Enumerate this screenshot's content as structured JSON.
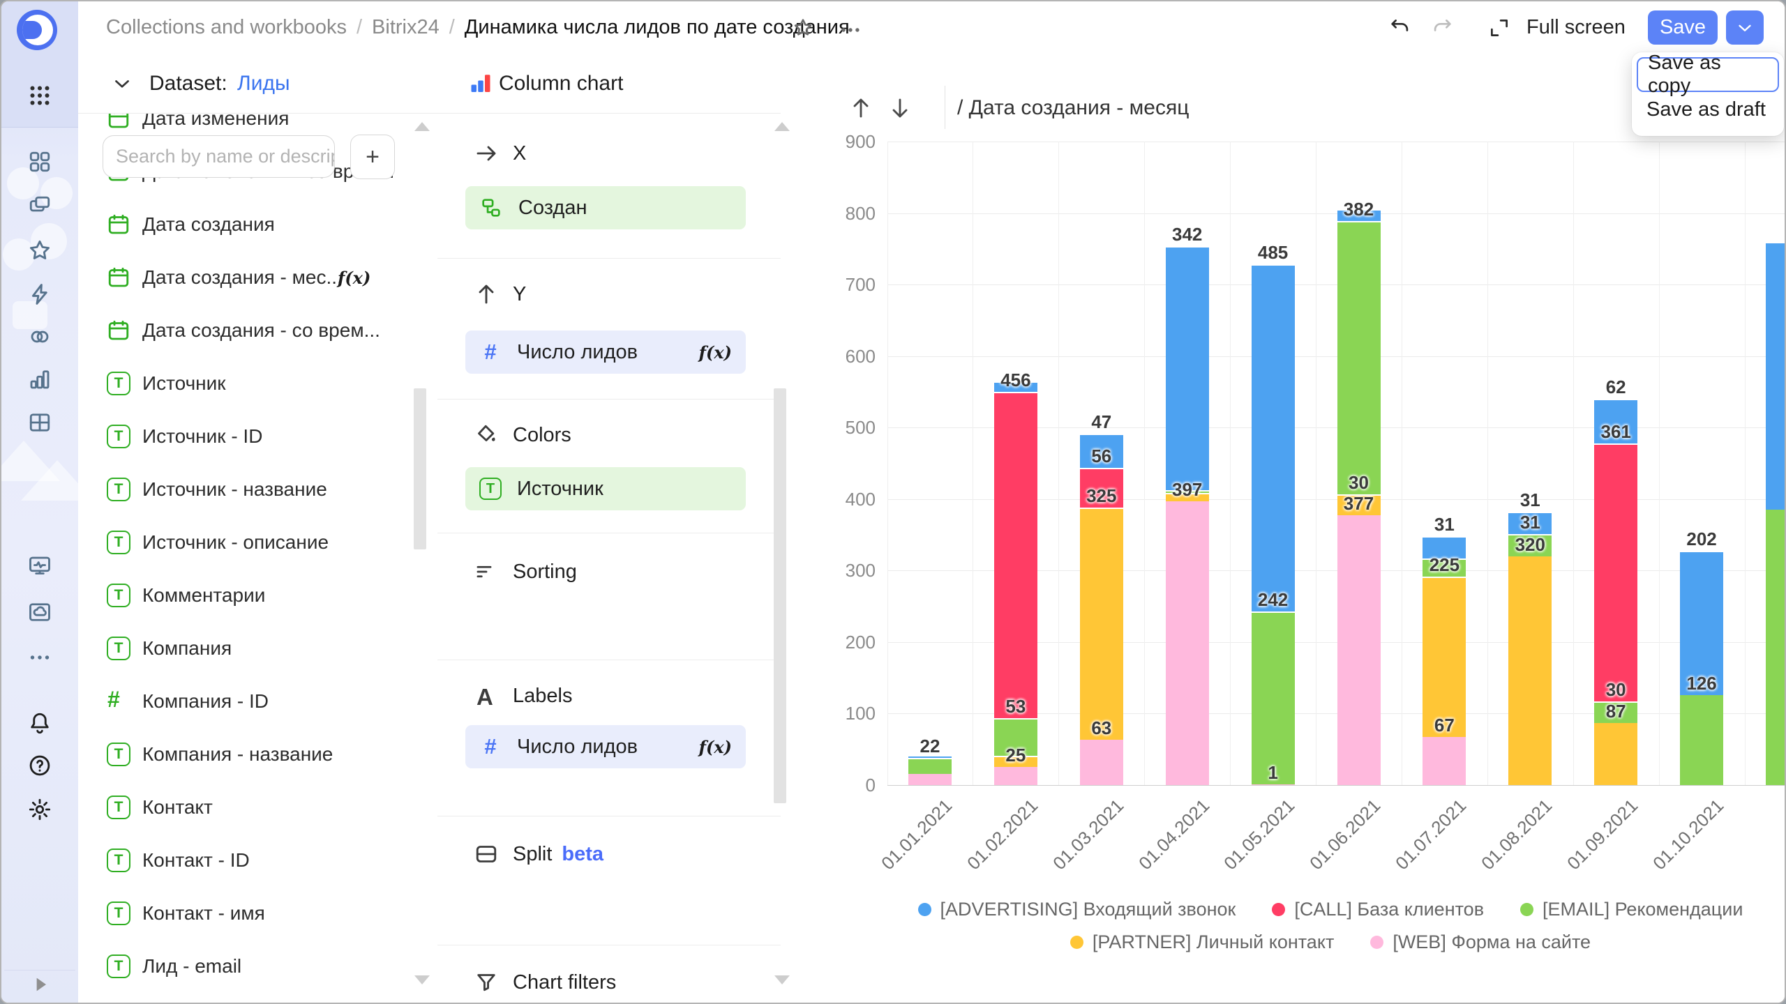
{
  "topbar": {
    "breadcrumbs": [
      "Collections and workbooks",
      "Bitrix24",
      "Динамика числа лидов по дате создания"
    ],
    "separator": "/",
    "full_screen_label": "Full screen",
    "save_label": "Save",
    "menu": [
      "Save as copy",
      "Save as draft"
    ]
  },
  "rail": {
    "icons_top": [
      "apps-menu"
    ],
    "icons_main": [
      "dashboards-grid",
      "collections",
      "favorites",
      "quick-actions",
      "connections",
      "charts",
      "tables",
      "monitoring",
      "cloud-storage",
      "more"
    ],
    "icons_bottom": [
      "notifications",
      "help",
      "settings"
    ],
    "expand_icon": "play"
  },
  "dataset_panel": {
    "dataset_label": "Dataset:",
    "dataset_name": "Лиды",
    "search_placeholder": "Search by name or descript",
    "add_button": "+",
    "fx_label": "f(x)",
    "fields": [
      {
        "name": "Дата изменения",
        "icon": "calendar"
      },
      {
        "name": "Дата изменения - со врем...",
        "icon": "calendar"
      },
      {
        "name": "Дата создания",
        "icon": "calendar"
      },
      {
        "name": "Дата создания - мес...",
        "icon": "calendar",
        "fx": true
      },
      {
        "name": "Дата создания - со врем...",
        "icon": "calendar"
      },
      {
        "name": "Источник",
        "icon": "text"
      },
      {
        "name": "Источник - ID",
        "icon": "text"
      },
      {
        "name": "Источник - название",
        "icon": "text"
      },
      {
        "name": "Источник - описание",
        "icon": "text"
      },
      {
        "name": "Комментарии",
        "icon": "text"
      },
      {
        "name": "Компания",
        "icon": "text"
      },
      {
        "name": "Компания - ID",
        "icon": "number"
      },
      {
        "name": "Компания - название",
        "icon": "text"
      },
      {
        "name": "Контакт",
        "icon": "text"
      },
      {
        "name": "Контакт - ID",
        "icon": "text"
      },
      {
        "name": "Контакт - имя",
        "icon": "text"
      },
      {
        "name": "Лид - email",
        "icon": "text"
      }
    ]
  },
  "config_panel": {
    "chart_type": "Column chart",
    "sections": {
      "x": "X",
      "y": "Y",
      "colors": "Colors",
      "sorting": "Sorting",
      "labels": "Labels",
      "split": "Split",
      "split_badge": "beta",
      "filters": "Chart filters"
    },
    "chips": {
      "x": {
        "label": "Создан"
      },
      "y": {
        "label": "Число лидов",
        "fx": "f(x)"
      },
      "colors": {
        "label": "Источник"
      },
      "labels": {
        "label": "Число лидов",
        "fx": "f(x)"
      }
    }
  },
  "chart_header": {
    "drill_title": "/ Дата создания - месяц"
  },
  "chart_data": {
    "type": "bar",
    "stacked": true,
    "title": "",
    "xlabel": "",
    "ylabel": "",
    "ylim": [
      0,
      900
    ],
    "ytick_step": 100,
    "grid": true,
    "legend_position": "bottom",
    "categories": [
      "01.01.2021",
      "01.02.2021",
      "01.03.2021",
      "01.04.2021",
      "01.05.2021",
      "01.06.2021",
      "01.07.2021",
      "01.08.2021",
      "01.09.2021",
      "01.10.2021"
    ],
    "series": [
      {
        "name": "[ADVERTISING] Входящий звонок",
        "color": "#4DA2F1",
        "values": [
          4,
          15,
          47,
          342,
          485,
          16,
          31,
          31,
          62,
          202
        ],
        "labeled": [
          0,
          0,
          1,
          1,
          1,
          0,
          1,
          1,
          1,
          1
        ]
      },
      {
        "name": "[CALL] База клиентов",
        "color": "#FF3D64",
        "values": [
          0,
          456,
          56,
          0,
          0,
          0,
          0,
          0,
          361,
          0
        ],
        "labeled": [
          0,
          1,
          1,
          0,
          0,
          0,
          0,
          0,
          1,
          0
        ]
      },
      {
        "name": "[EMAIL] Рекомендации",
        "color": "#8AD554",
        "values": [
          22,
          53,
          0,
          3,
          242,
          382,
          25,
          31,
          30,
          126
        ],
        "labeled": [
          1,
          1,
          0,
          0,
          1,
          1,
          0,
          1,
          1,
          1
        ]
      },
      {
        "name": "[PARTNER] Личный контакт",
        "color": "#FFC636",
        "values": [
          0,
          16,
          325,
          12,
          0,
          30,
          225,
          320,
          87,
          0
        ],
        "labeled": [
          0,
          0,
          1,
          0,
          0,
          1,
          1,
          1,
          1,
          0
        ]
      },
      {
        "name": "[WEB] Форма на сайте",
        "color": "#FFB9DD",
        "values": [
          16,
          25,
          63,
          397,
          1,
          377,
          67,
          0,
          0,
          0
        ],
        "labeled": [
          0,
          1,
          1,
          1,
          1,
          1,
          1,
          0,
          0,
          0
        ]
      }
    ],
    "stack_order_indexes_bottom_to_top": [
      4,
      3,
      2,
      1,
      0
    ],
    "clipped_partial_bar": {
      "note": "11th column clipped by the right panel edge, labels not visible",
      "values_est": {
        "[EMAIL] Рекомендации": 385,
        "[ADVERTISING] Входящий звонок": 375
      }
    }
  },
  "colors": {
    "accent_blue": "#5c83f7",
    "field_green": "#2fae22",
    "chip_green_bg": "#e4f6de",
    "chip_blue_bg": "#e9edfc"
  }
}
